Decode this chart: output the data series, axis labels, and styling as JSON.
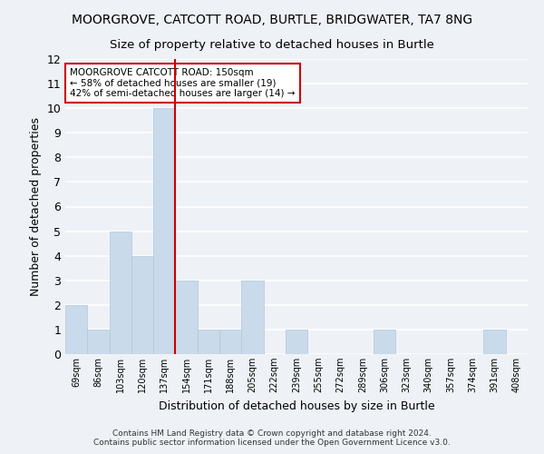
{
  "title_line1": "MOORGROVE, CATCOTT ROAD, BURTLE, BRIDGWATER, TA7 8NG",
  "title_line2": "Size of property relative to detached houses in Burtle",
  "xlabel": "Distribution of detached houses by size in Burtle",
  "ylabel": "Number of detached properties",
  "categories": [
    "69sqm",
    "86sqm",
    "103sqm",
    "120sqm",
    "137sqm",
    "154sqm",
    "171sqm",
    "188sqm",
    "205sqm",
    "222sqm",
    "239sqm",
    "255sqm",
    "272sqm",
    "289sqm",
    "306sqm",
    "323sqm",
    "340sqm",
    "357sqm",
    "374sqm",
    "391sqm",
    "408sqm"
  ],
  "values": [
    2,
    1,
    5,
    4,
    10,
    3,
    1,
    1,
    3,
    0,
    1,
    0,
    0,
    0,
    1,
    0,
    0,
    0,
    0,
    1,
    0
  ],
  "bar_color": "#c9daea",
  "bar_edge_color": "#b0c8dc",
  "highlight_index": 4,
  "highlight_line_color": "#cc0000",
  "ylim": [
    0,
    12
  ],
  "yticks": [
    0,
    1,
    2,
    3,
    4,
    5,
    6,
    7,
    8,
    9,
    10,
    11,
    12
  ],
  "annotation_text": "MOORGROVE CATCOTT ROAD: 150sqm\n← 58% of detached houses are smaller (19)\n42% of semi-detached houses are larger (14) →",
  "annotation_box_color": "#ffffff",
  "annotation_box_edge": "#cc0000",
  "footer_line1": "Contains HM Land Registry data © Crown copyright and database right 2024.",
  "footer_line2": "Contains public sector information licensed under the Open Government Licence v3.0.",
  "background_color": "#eef2f7",
  "grid_color": "#ffffff"
}
